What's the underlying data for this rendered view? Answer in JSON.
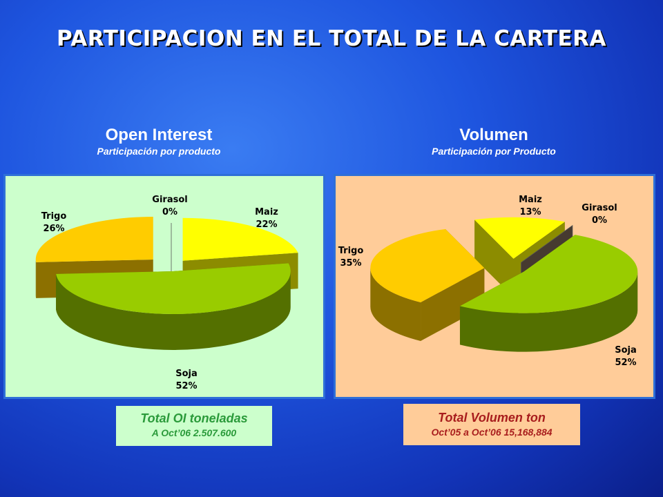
{
  "page": {
    "title": "PARTICIPACION EN EL TOTAL DE LA CARTERA"
  },
  "chart_data": [
    {
      "type": "pie",
      "title": "Open Interest",
      "subtitle": "Participación  por producto",
      "categories": [
        "Girasol",
        "Maiz",
        "Soja",
        "Trigo"
      ],
      "values": [
        0,
        22,
        52,
        26
      ],
      "value_labels": [
        "0%",
        "22%",
        "52%",
        "26%"
      ],
      "colors": [
        "#ffffff",
        "#ffff00",
        "#99cc00",
        "#ffcc00"
      ],
      "background": "#ccffcc",
      "exploded": true,
      "three_d": true
    },
    {
      "type": "pie",
      "title": "Volumen",
      "subtitle": "Participación por Producto",
      "categories": [
        "Maiz",
        "Girasol",
        "Soja",
        "Trigo"
      ],
      "values": [
        13,
        0,
        52,
        35
      ],
      "value_labels": [
        "13%",
        "0%",
        "52%",
        "35%"
      ],
      "colors": [
        "#ffff00",
        "#7f6a58",
        "#99cc00",
        "#ffcc00"
      ],
      "background": "#ffcc99",
      "exploded": true,
      "three_d": true
    }
  ],
  "totals": {
    "oi": {
      "line1": "Total OI toneladas",
      "line2": "A Oct’06 2.507.600"
    },
    "volumen": {
      "line1": "Total Volumen ton",
      "line2": "Oct’05 a Oct’06 15,168,884"
    }
  }
}
